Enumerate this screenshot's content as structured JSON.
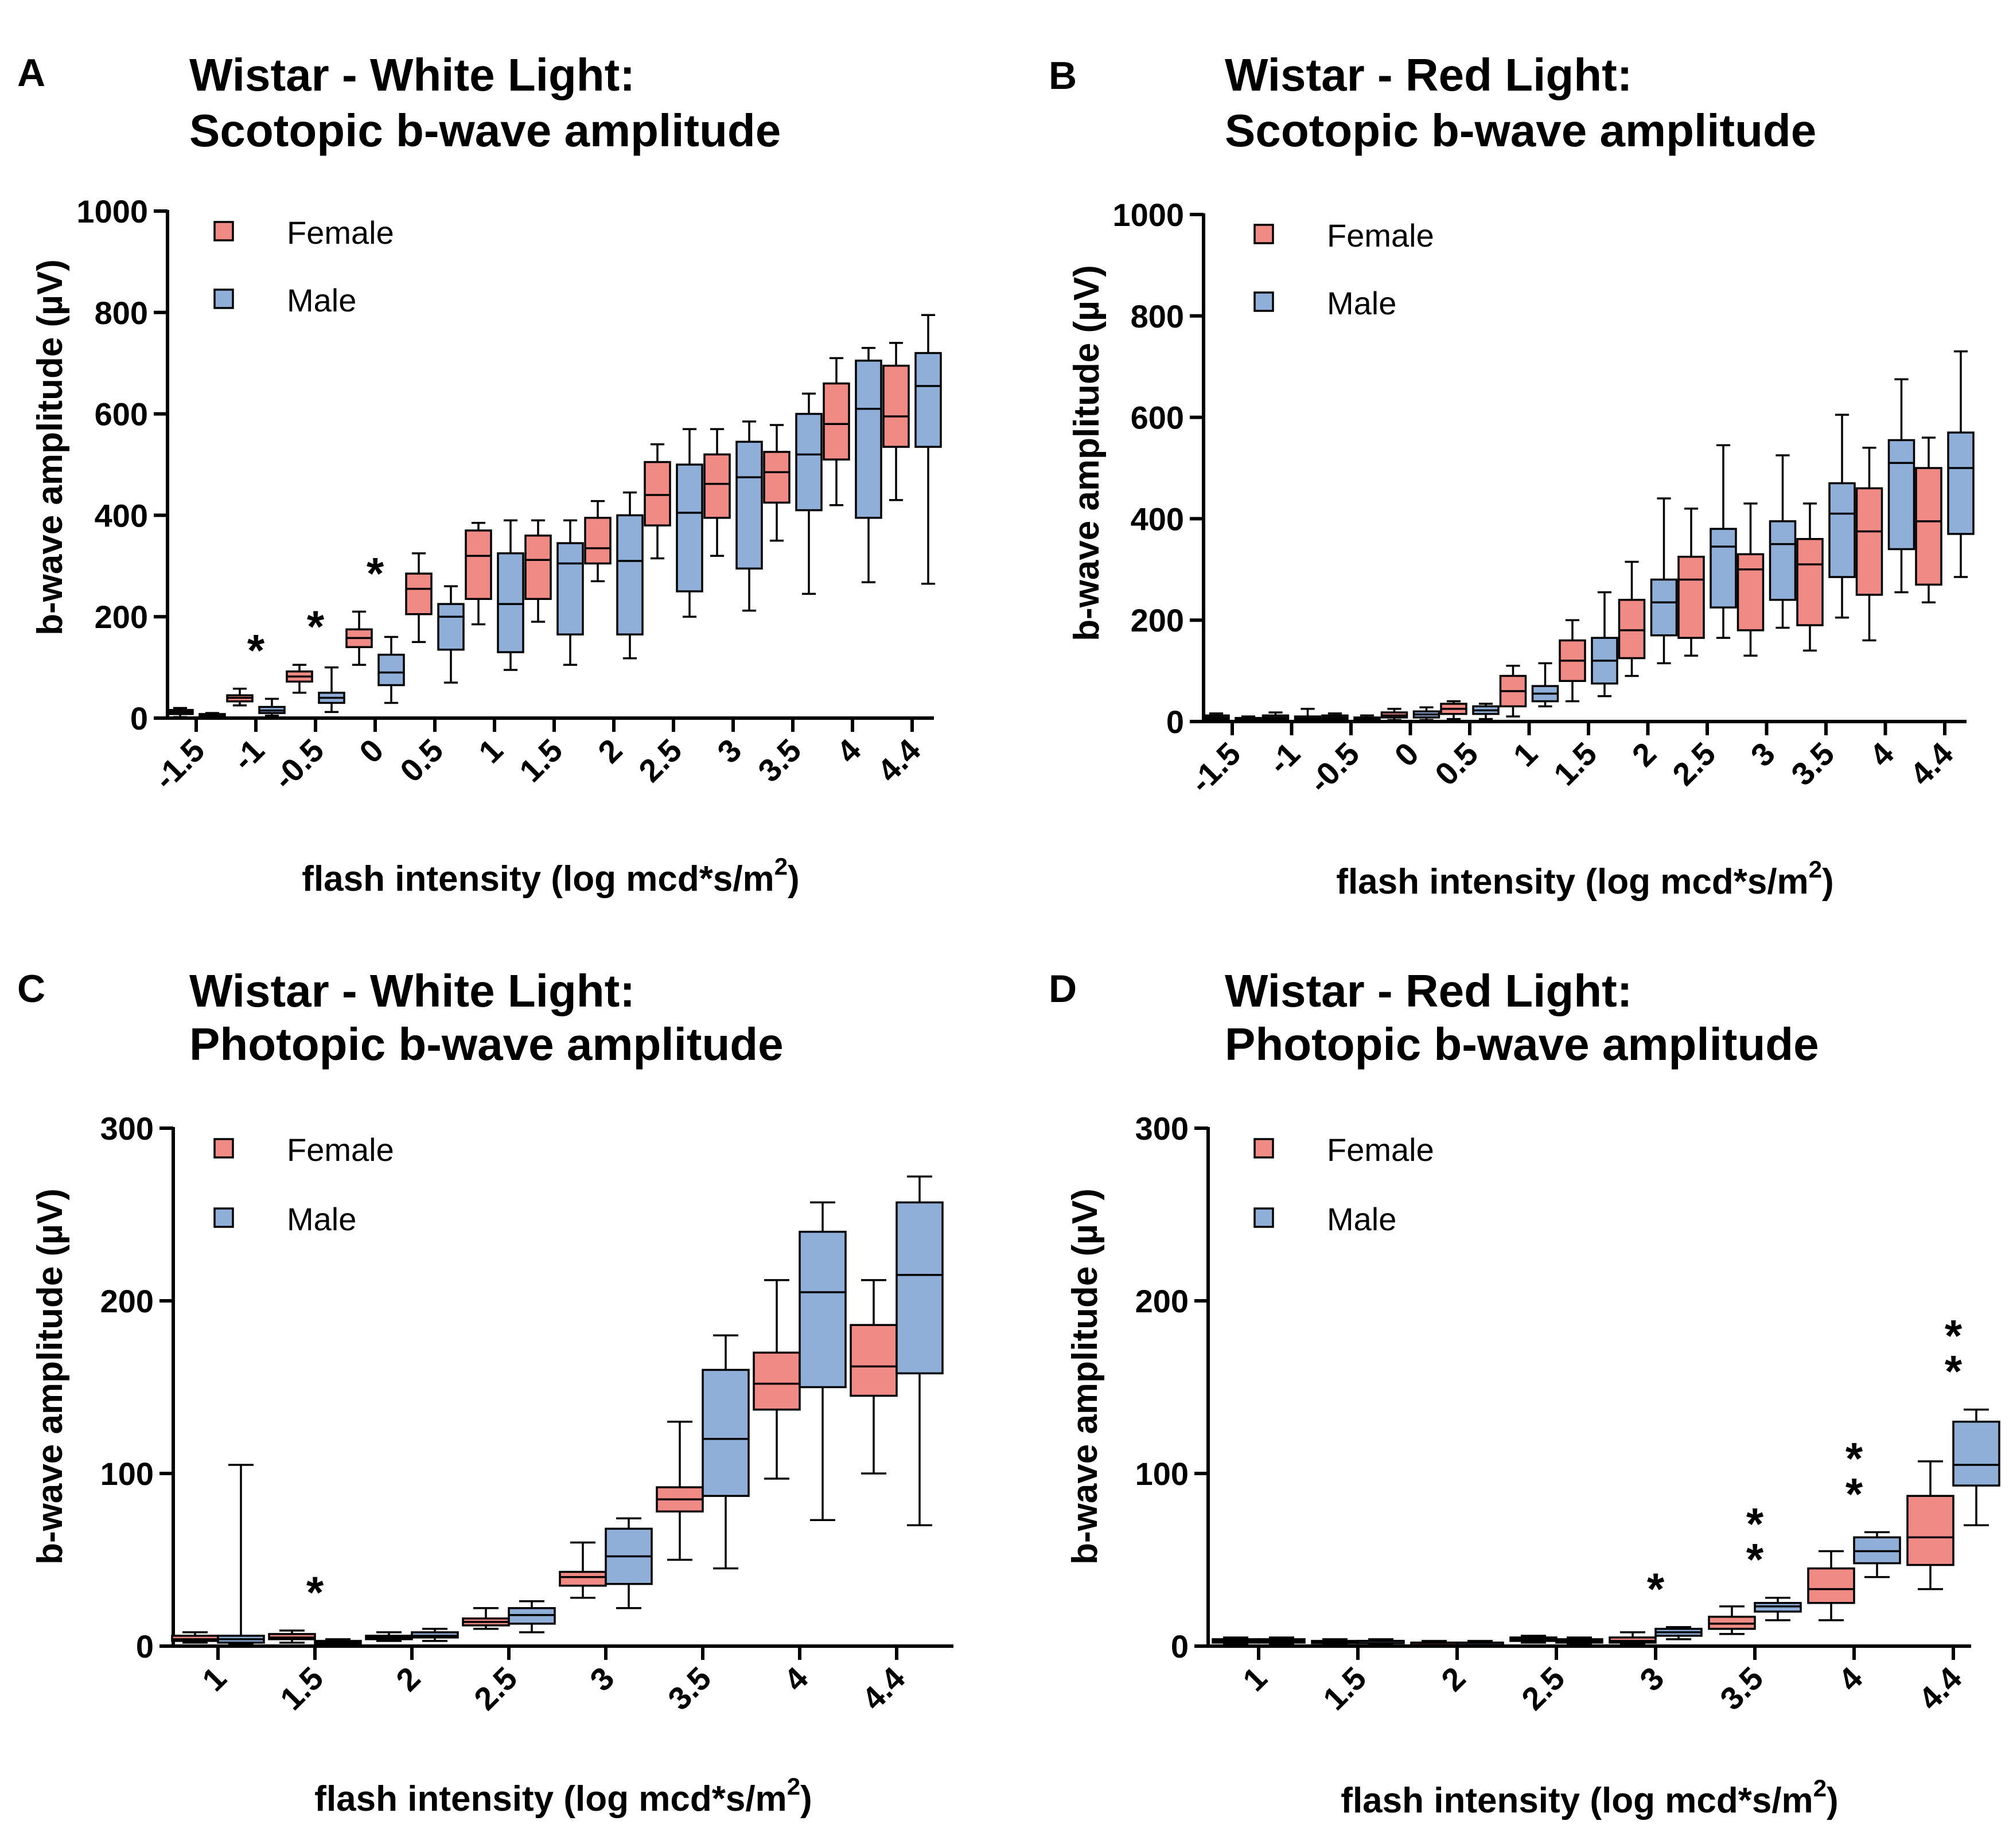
{
  "colors": {
    "female": "#F08A84",
    "male": "#8FAFD8",
    "axis": "#000000"
  },
  "chart_data": [
    {
      "panel_label": "A",
      "type": "box",
      "title_line1": "Wistar - White Light:",
      "title_line2": "Scotopic b-wave amplitude",
      "ylabel": "b-wave amplitude (µV)",
      "xlabel": "flash intensity (log mcd*s/m",
      "xlabel_sup": "2",
      "xlabel_close": ")",
      "ylim": [
        0,
        1000
      ],
      "yticks": [
        "0",
        "200",
        "400",
        "600",
        "800",
        "1000"
      ],
      "categories": [
        "-1.5",
        "-1",
        "-0.5",
        "0",
        "0.5",
        "1",
        "1.5",
        "2",
        "2.5",
        "3",
        "3.5",
        "4",
        "4.4"
      ],
      "legend": [
        "Female",
        "Male"
      ],
      "series": [
        {
          "name": "Female",
          "boxes": [
            [
              2,
              8,
              12,
              16,
              20
            ],
            [
              25,
              33,
              40,
              45,
              58
            ],
            [
              50,
              72,
              82,
              92,
              105
            ],
            [
              105,
              140,
              158,
              175,
              210
            ],
            [
              150,
              205,
              255,
              285,
              325
            ],
            [
              185,
              235,
              320,
              370,
              385
            ],
            [
              190,
              235,
              312,
              360,
              390
            ],
            [
              270,
              305,
              335,
              395,
              428
            ],
            [
              315,
              380,
              440,
              505,
              540
            ],
            [
              320,
              395,
              462,
              520,
              570
            ],
            [
              350,
              425,
              485,
              525,
              578
            ],
            [
              420,
              510,
              580,
              660,
              710
            ],
            [
              430,
              535,
              595,
              695,
              740
            ]
          ]
        },
        {
          "name": "Male",
          "boxes": [
            [
              2,
              4,
              6,
              8,
              10
            ],
            [
              5,
              10,
              15,
              22,
              38
            ],
            [
              12,
              30,
              40,
              50,
              100
            ],
            [
              30,
              65,
              90,
              125,
              160
            ],
            [
              70,
              135,
              200,
              225,
              260
            ],
            [
              95,
              130,
              225,
              325,
              390
            ],
            [
              105,
              165,
              305,
              345,
              390
            ],
            [
              118,
              165,
              310,
              400,
              445
            ],
            [
              200,
              250,
              405,
              500,
              570
            ],
            [
              212,
              295,
              475,
              545,
              585
            ],
            [
              245,
              410,
              520,
              600,
              640
            ],
            [
              268,
              395,
              610,
              705,
              730
            ],
            [
              265,
              535,
              655,
              720,
              795
            ]
          ]
        }
      ],
      "significance": [
        {
          "category": "-1",
          "marker": "*"
        },
        {
          "category": "-0.5",
          "marker": "*"
        },
        {
          "category": "0",
          "marker": "*"
        }
      ]
    },
    {
      "panel_label": "B",
      "type": "box",
      "title_line1": "Wistar - Red Light:",
      "title_line2": "Scotopic b-wave amplitude",
      "ylabel": "b-wave amplitude (µV)",
      "xlabel": "flash intensity (log mcd*s/m",
      "xlabel_sup": "2",
      "xlabel_close": ")",
      "ylim": [
        0,
        1000
      ],
      "yticks": [
        "0",
        "200",
        "400",
        "600",
        "800",
        "1000"
      ],
      "categories": [
        "-1.5",
        "-1",
        "-0.5",
        "0",
        "0.5",
        "1",
        "1.5",
        "2",
        "2.5",
        "3",
        "3.5",
        "4",
        "4.4"
      ],
      "legend": [
        "Female",
        "Male"
      ],
      "series": [
        {
          "name": "Female",
          "boxes": [
            [
              2,
              5,
              8,
              12,
              16
            ],
            [
              2,
              5,
              8,
              12,
              18
            ],
            [
              2,
              5,
              8,
              12,
              16
            ],
            [
              3,
              8,
              12,
              18,
              25
            ],
            [
              5,
              15,
              25,
              35,
              40
            ],
            [
              10,
              30,
              60,
              90,
              110
            ],
            [
              40,
              80,
              120,
              160,
              200
            ],
            [
              90,
              125,
              180,
              240,
              315
            ],
            [
              130,
              165,
              280,
              325,
              420
            ],
            [
              130,
              180,
              300,
              330,
              430
            ],
            [
              140,
              190,
              310,
              360,
              430
            ],
            [
              160,
              250,
              375,
              460,
              540
            ],
            [
              235,
              270,
              395,
              500,
              560
            ]
          ]
        },
        {
          "name": "Male",
          "boxes": [
            [
              1,
              3,
              5,
              7,
              10
            ],
            [
              1,
              3,
              6,
              10,
              25
            ],
            [
              2,
              4,
              6,
              8,
              12
            ],
            [
              3,
              8,
              14,
              20,
              28
            ],
            [
              5,
              15,
              22,
              30,
              35
            ],
            [
              30,
              40,
              55,
              70,
              115
            ],
            [
              50,
              75,
              120,
              165,
              255
            ],
            [
              115,
              170,
              235,
              280,
              440
            ],
            [
              165,
              225,
              345,
              380,
              545
            ],
            [
              185,
              240,
              350,
              395,
              525
            ],
            [
              205,
              285,
              410,
              470,
              605
            ],
            [
              255,
              340,
              510,
              555,
              675
            ],
            [
              285,
              370,
              500,
              570,
              730
            ]
          ]
        }
      ],
      "significance": []
    },
    {
      "panel_label": "C",
      "type": "box",
      "title_line1": "Wistar - White Light:",
      "title_line2": "Photopic b-wave amplitude",
      "ylabel": "b-wave amplitude (µV)",
      "xlabel": "flash intensity (log mcd*s/m",
      "xlabel_sup": "2",
      "xlabel_close": ")",
      "ylim": [
        0,
        300
      ],
      "yticks": [
        "0",
        "100",
        "200",
        "300"
      ],
      "categories": [
        "1",
        "1.5",
        "2",
        "2.5",
        "3",
        "3.5",
        "4",
        "4.4"
      ],
      "legend": [
        "Female",
        "Male"
      ],
      "series": [
        {
          "name": "Female",
          "boxes": [
            [
              2,
              3,
              4,
              6,
              8
            ],
            [
              2,
              4,
              5,
              7,
              9
            ],
            [
              3,
              4,
              5,
              6,
              8
            ],
            [
              10,
              12,
              14,
              16,
              22
            ],
            [
              28,
              35,
              40,
              43,
              60
            ],
            [
              50,
              78,
              85,
              92,
              130
            ],
            [
              97,
              137,
              152,
              170,
              212
            ],
            [
              100,
              145,
              162,
              186,
              212
            ]
          ]
        },
        {
          "name": "Male",
          "boxes": [
            [
              1,
              2,
              4,
              6,
              105
            ],
            [
              1,
              1,
              2,
              3,
              4
            ],
            [
              3,
              5,
              6,
              8,
              10
            ],
            [
              8,
              13,
              18,
              22,
              26
            ],
            [
              22,
              36,
              52,
              68,
              74
            ],
            [
              45,
              87,
              120,
              160,
              180
            ],
            [
              73,
              150,
              205,
              240,
              257
            ],
            [
              70,
              158,
              215,
              257,
              272
            ]
          ]
        }
      ],
      "significance": [
        {
          "category": "1.5",
          "marker": "*"
        }
      ]
    },
    {
      "panel_label": "D",
      "type": "box",
      "title_line1": "Wistar - Red Light:",
      "title_line2": "Photopic b-wave amplitude",
      "ylabel": "b-wave amplitude (µV)",
      "xlabel": "flash intensity (log mcd*s/m",
      "xlabel_sup": "2",
      "xlabel_close": ")",
      "ylim": [
        0,
        300
      ],
      "yticks": [
        "0",
        "100",
        "200",
        "300"
      ],
      "categories": [
        "1",
        "1.5",
        "2",
        "2.5",
        "3",
        "3.5",
        "4",
        "4.4"
      ],
      "legend": [
        "Female",
        "Male"
      ],
      "series": [
        {
          "name": "Female",
          "boxes": [
            [
              1,
              2,
              3,
              4,
              5
            ],
            [
              1,
              2,
              2,
              3,
              4
            ],
            [
              1,
              1,
              2,
              2,
              3
            ],
            [
              2,
              3,
              4,
              5,
              6
            ],
            [
              1,
              2,
              3,
              5,
              8
            ],
            [
              7,
              10,
              13,
              17,
              23
            ],
            [
              15,
              25,
              33,
              45,
              55
            ],
            [
              33,
              47,
              63,
              87,
              107
            ]
          ]
        },
        {
          "name": "Male",
          "boxes": [
            [
              1,
              2,
              3,
              4,
              5
            ],
            [
              1,
              2,
              3,
              3,
              4
            ],
            [
              1,
              1,
              2,
              2,
              3
            ],
            [
              1,
              2,
              3,
              4,
              5
            ],
            [
              4,
              6,
              8,
              10,
              11
            ],
            [
              15,
              20,
              23,
              25,
              28
            ],
            [
              40,
              48,
              55,
              63,
              66
            ],
            [
              70,
              93,
              105,
              130,
              137
            ]
          ]
        }
      ],
      "significance": [
        {
          "category": "3",
          "marker": "*"
        },
        {
          "category": "3.5",
          "marker": "**"
        },
        {
          "category": "4",
          "marker": "**"
        },
        {
          "category": "4.4",
          "marker": "**"
        }
      ]
    }
  ]
}
